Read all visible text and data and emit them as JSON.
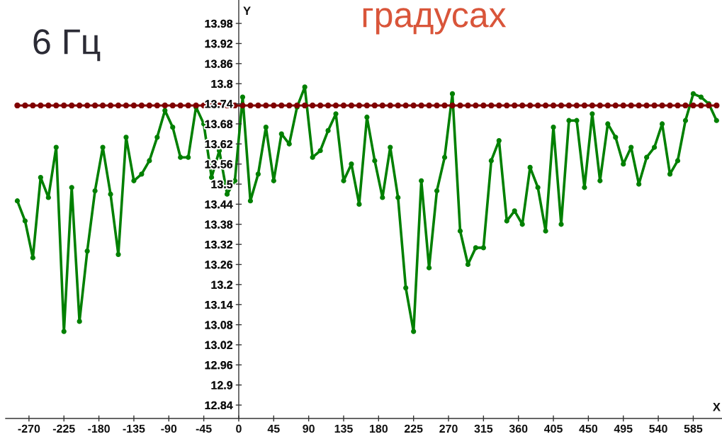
{
  "chart_data": {
    "type": "line",
    "title": "градусах",
    "xlabel": "X",
    "ylabel": "Y",
    "annotations": [
      "6 Гц"
    ],
    "x": [
      -285,
      -275,
      -265,
      -255,
      -245,
      -235,
      -225,
      -215,
      -205,
      -195,
      -185,
      -175,
      -165,
      -155,
      -145,
      -135,
      -125,
      -115,
      -105,
      -95,
      -85,
      -75,
      -65,
      -55,
      -45,
      -35,
      -25,
      -15,
      -5,
      5,
      15,
      25,
      35,
      45,
      55,
      65,
      75,
      85,
      95,
      105,
      115,
      125,
      135,
      145,
      155,
      165,
      175,
      185,
      195,
      205,
      215,
      225,
      235,
      245,
      255,
      265,
      275,
      285,
      295,
      305,
      315,
      325,
      335,
      345,
      355,
      365,
      375,
      385,
      395,
      405,
      415,
      425,
      435,
      445,
      455,
      465,
      475,
      485,
      495,
      505,
      515,
      525,
      535,
      545,
      555,
      565,
      575,
      585,
      595,
      605,
      615
    ],
    "series": [
      {
        "color": "#008000",
        "values": [
          13.45,
          13.39,
          13.28,
          13.52,
          13.46,
          13.61,
          13.06,
          13.49,
          13.09,
          13.3,
          13.48,
          13.61,
          13.47,
          13.29,
          13.64,
          13.51,
          13.53,
          13.57,
          13.64,
          13.72,
          13.67,
          13.58,
          13.58,
          13.73,
          13.68,
          13.52,
          13.6,
          13.47,
          13.51,
          13.76,
          13.45,
          13.53,
          13.67,
          13.51,
          13.65,
          13.62,
          13.73,
          13.79,
          13.58,
          13.6,
          13.66,
          13.71,
          13.51,
          13.56,
          13.44,
          13.7,
          13.57,
          13.46,
          13.61,
          13.46,
          13.19,
          13.06,
          13.51,
          13.25,
          13.48,
          13.58,
          13.77,
          13.36,
          13.26,
          13.31,
          13.31,
          13.57,
          13.63,
          13.39,
          13.42,
          13.38,
          13.55,
          13.49,
          13.36,
          13.67,
          13.38,
          13.69,
          13.69,
          13.49,
          13.71,
          13.51,
          13.68,
          13.64,
          13.56,
          13.61,
          13.5,
          13.58,
          13.61,
          13.68,
          13.53,
          13.57,
          13.69,
          13.77,
          13.76,
          13.74,
          13.69
        ]
      },
      {
        "color": "#800000",
        "values": [
          13.735,
          13.735,
          13.735,
          13.735,
          13.735,
          13.735,
          13.735,
          13.735,
          13.735,
          13.735,
          13.735,
          13.735,
          13.735,
          13.735,
          13.735,
          13.735,
          13.735,
          13.735,
          13.735,
          13.735,
          13.735,
          13.735,
          13.735,
          13.735,
          13.735,
          13.735,
          13.735,
          13.735,
          13.735,
          13.735,
          13.735,
          13.735,
          13.735,
          13.735,
          13.735,
          13.735,
          13.735,
          13.735,
          13.735,
          13.735,
          13.735,
          13.735,
          13.735,
          13.735,
          13.735,
          13.735,
          13.735,
          13.735,
          13.735,
          13.735,
          13.735,
          13.735,
          13.735,
          13.735,
          13.735,
          13.735,
          13.735,
          13.735,
          13.735,
          13.735,
          13.735,
          13.735,
          13.735,
          13.735,
          13.735,
          13.735,
          13.735,
          13.735,
          13.735,
          13.735,
          13.735,
          13.735,
          13.735,
          13.735,
          13.735,
          13.735,
          13.735,
          13.735,
          13.735,
          13.735,
          13.735,
          13.735,
          13.735,
          13.735,
          13.735,
          13.735,
          13.735,
          13.735,
          13.735,
          13.735,
          13.735
        ]
      }
    ],
    "xlim": [
      -300,
      622
    ],
    "ylim": [
      12.8,
      14.05
    ],
    "xticks": [
      -270,
      -225,
      -180,
      -135,
      -90,
      -45,
      0,
      45,
      90,
      135,
      180,
      225,
      270,
      315,
      360,
      405,
      450,
      495,
      540,
      585
    ],
    "yticks": [
      12.84,
      12.9,
      12.96,
      13.02,
      13.08,
      13.14,
      13.2,
      13.26,
      13.32,
      13.38,
      13.44,
      13.5,
      13.56,
      13.62,
      13.68,
      13.74,
      13.8,
      13.86,
      13.92,
      13.98
    ],
    "marker": "circle",
    "line_style": "solid"
  }
}
